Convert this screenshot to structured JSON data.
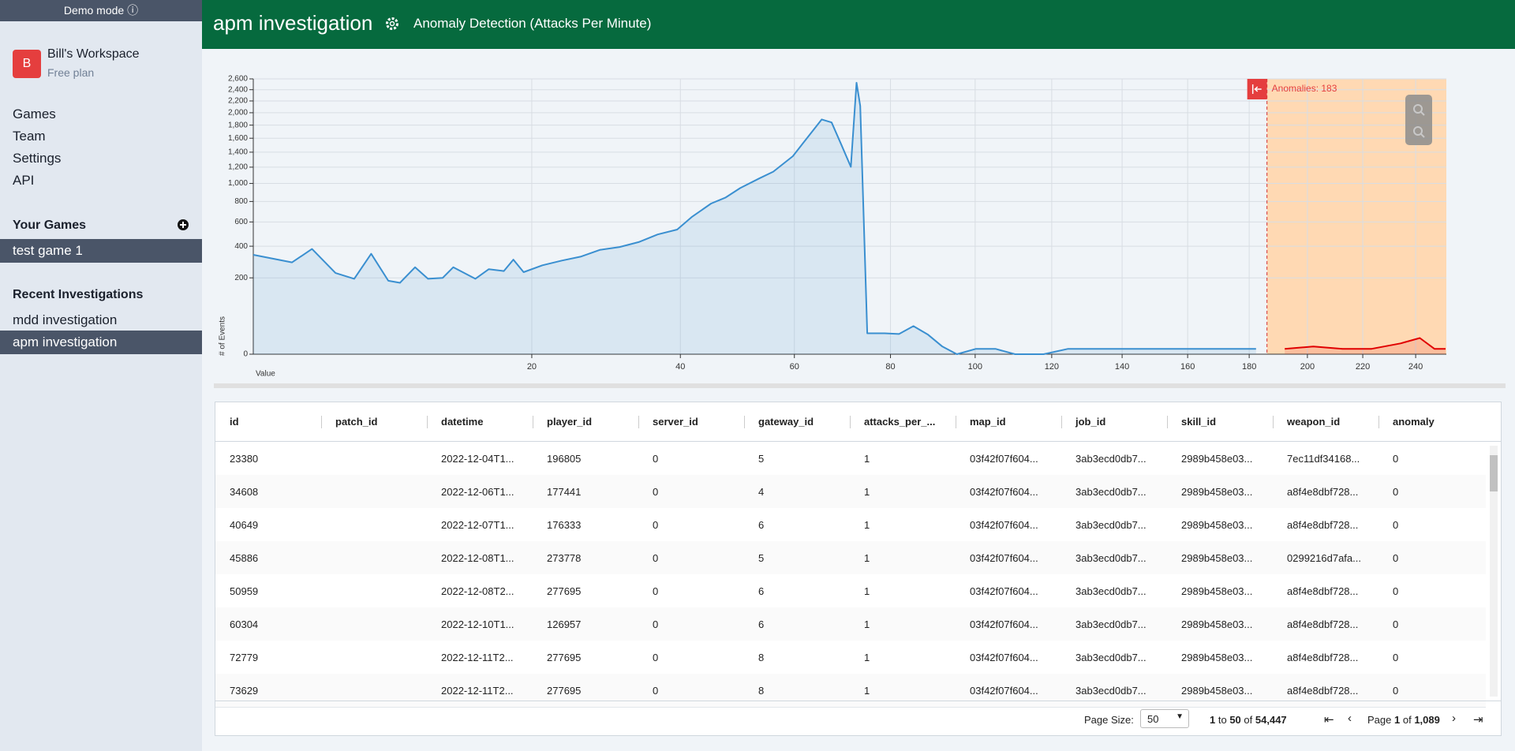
{
  "sidebar": {
    "demo_mode": "Demo mode",
    "workspace": {
      "initial": "B",
      "name": "Bill's Workspace",
      "plan": "Free plan"
    },
    "nav": [
      "Games",
      "Team",
      "Settings",
      "API"
    ],
    "your_games": {
      "title": "Your Games",
      "items": [
        "test game 1"
      ]
    },
    "recent": {
      "title": "Recent Investigations",
      "items": [
        "mdd investigation",
        "apm investigation"
      ]
    }
  },
  "header": {
    "title": "apm investigation",
    "subtitle": "Anomaly Detection (Attacks Per Minute)"
  },
  "chart_data": {
    "type": "area",
    "y_label": "# of Events",
    "x_label": "Value",
    "annotation": "Anomalies: 183",
    "x": [
      1,
      2.2,
      3,
      4.1,
      5.1,
      6.1,
      7.2,
      8,
      9.1,
      10.1,
      11.3,
      12.2,
      14.2,
      15.5,
      17,
      18,
      19.1,
      21.2,
      23.5,
      25.8,
      28.3,
      31,
      33.7,
      36.5,
      39.5,
      41.8,
      45,
      47.4,
      50,
      53.4,
      56,
      59.7,
      62.5,
      65.4,
      67.4,
      69.4,
      71.4,
      72.6,
      73.4,
      74.9,
      78.7,
      81.9,
      85.2,
      88.6,
      92,
      95.5,
      100.2,
      105.1,
      110.2,
      117.8,
      124.5,
      134,
      148.2,
      163.3,
      174.3,
      182.3,
      192.1,
      202.1,
      212.6,
      223.3,
      234.2,
      241.6,
      247.3,
      251.7
    ],
    "series": [
      {
        "color": "#3a8fd0",
        "values": [
          339,
          289,
          380,
          226,
          195,
          346,
          185,
          175,
          259,
          195,
          200,
          259,
          195,
          248,
          237,
          307,
          231,
          271,
          301,
          326,
          373,
          394,
          431,
          492,
          533,
          645,
          779,
          840,
          947,
          1060,
          1143,
          1345,
          1606,
          1890,
          1843,
          1507,
          1204,
          2527,
          2114,
          15,
          15,
          14,
          27,
          13,
          2,
          0,
          1,
          1,
          0,
          0,
          1,
          1,
          1,
          1,
          1,
          1,
          null,
          null,
          null,
          null,
          null,
          null,
          null,
          null
        ]
      },
      {
        "color": "#e00000",
        "values": [
          null,
          null,
          null,
          null,
          null,
          null,
          null,
          null,
          null,
          null,
          null,
          null,
          null,
          null,
          null,
          null,
          null,
          null,
          null,
          null,
          null,
          null,
          null,
          null,
          null,
          null,
          null,
          null,
          null,
          null,
          null,
          null,
          null,
          null,
          null,
          null,
          null,
          null,
          null,
          null,
          null,
          null,
          null,
          null,
          null,
          null,
          null,
          null,
          null,
          null,
          null,
          null,
          null,
          null,
          null,
          null,
          1,
          2,
          1,
          1,
          4,
          9,
          1,
          1
        ]
      }
    ],
    "threshold": 186,
    "anomaly_band_color": "#ffd9b3",
    "xscale": "sqrt",
    "yscale": "sqrt",
    "xlim": [
      1,
      252
    ],
    "ylim": [
      0,
      2600
    ],
    "xticks": [
      20,
      40,
      60,
      80,
      100,
      120,
      140,
      160,
      180,
      200,
      220,
      240
    ],
    "yticks": [
      0,
      200,
      400,
      600,
      800,
      {
        "value": 1000,
        "label": "1,000"
      },
      {
        "value": 1200,
        "label": "1,200"
      },
      {
        "value": 1400,
        "label": "1,400"
      },
      {
        "value": 1600,
        "label": "1,600"
      },
      {
        "value": 1800,
        "label": "1,800"
      },
      {
        "value": 2000,
        "label": "2,000"
      },
      {
        "value": 2200,
        "label": "2,200"
      },
      {
        "value": 2400,
        "label": "2,400"
      },
      {
        "value": 2600,
        "label": "2,600"
      }
    ],
    "grid": true
  },
  "table": {
    "columns": [
      "id",
      "patch_id",
      "datetime",
      "player_id",
      "server_id",
      "gateway_id",
      "attacks_per_...",
      "map_id",
      "job_id",
      "skill_id",
      "weapon_id",
      "anomaly"
    ],
    "rows": [
      [
        23380,
        null,
        "2022-12-04T1...",
        196805,
        0,
        5,
        1,
        "03f42f07f604...",
        "3ab3ecd0db7...",
        "2989b458e03...",
        "7ec11df34168...",
        0
      ],
      [
        34608,
        null,
        "2022-12-06T1...",
        177441,
        0,
        4,
        1,
        "03f42f07f604...",
        "3ab3ecd0db7...",
        "2989b458e03...",
        "a8f4e8dbf728...",
        0
      ],
      [
        40649,
        null,
        "2022-12-07T1...",
        176333,
        0,
        6,
        1,
        "03f42f07f604...",
        "3ab3ecd0db7...",
        "2989b458e03...",
        "a8f4e8dbf728...",
        0
      ],
      [
        45886,
        null,
        "2022-12-08T1...",
        273778,
        0,
        5,
        1,
        "03f42f07f604...",
        "3ab3ecd0db7...",
        "2989b458e03...",
        "0299216d7afa...",
        0
      ],
      [
        50959,
        null,
        "2022-12-08T2...",
        277695,
        0,
        6,
        1,
        "03f42f07f604...",
        "3ab3ecd0db7...",
        "2989b458e03...",
        "a8f4e8dbf728...",
        0
      ],
      [
        60304,
        null,
        "2022-12-10T1...",
        126957,
        0,
        6,
        1,
        "03f42f07f604...",
        "3ab3ecd0db7...",
        "2989b458e03...",
        "a8f4e8dbf728...",
        0
      ],
      [
        72779,
        null,
        "2022-12-11T2...",
        277695,
        0,
        8,
        1,
        "03f42f07f604...",
        "3ab3ecd0db7...",
        "2989b458e03...",
        "a8f4e8dbf728...",
        0
      ],
      [
        73629,
        null,
        "2022-12-11T2...",
        277695,
        0,
        8,
        1,
        "03f42f07f604...",
        "3ab3ecd0db7...",
        "2989b458e03...",
        "a8f4e8dbf728...",
        0
      ]
    ]
  },
  "pagination": {
    "page_size_label": "Page Size:",
    "page_size": 50,
    "from": 1,
    "to_word": "to",
    "to": 50,
    "of_word": "of",
    "total": "54,447",
    "page_word": "Page",
    "page": 1,
    "page_of_word": "of",
    "pages": "1,089"
  }
}
